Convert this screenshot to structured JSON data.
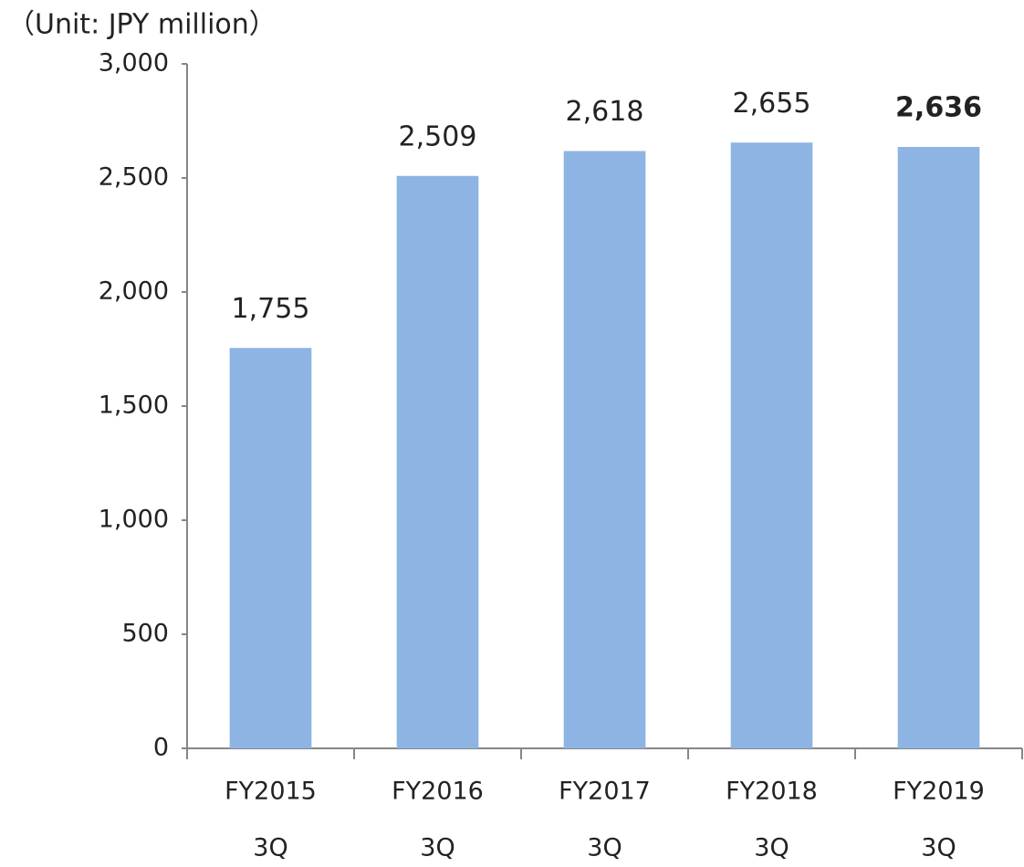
{
  "chart_data": {
    "type": "bar",
    "subtitle": "（Unit: JPY million）",
    "categories": [
      [
        "FY2015",
        "3Q"
      ],
      [
        "FY2016",
        "3Q"
      ],
      [
        "FY2017",
        "3Q"
      ],
      [
        "FY2018",
        "3Q"
      ],
      [
        "FY2019",
        "3Q"
      ]
    ],
    "values": [
      1755,
      2509,
      2618,
      2655,
      2636
    ],
    "value_labels": [
      "1,755",
      "2,509",
      "2,618",
      "2,655",
      "2,636"
    ],
    "value_label_bold": [
      false,
      false,
      false,
      false,
      true
    ],
    "color": "#8eb4e3",
    "ylim": [
      0,
      3000
    ],
    "yticks": [
      0,
      500,
      {
        "value": 1000,
        "label": "1,000"
      },
      {
        "value": 1500,
        "label": "1,500"
      },
      {
        "value": 2000,
        "label": "2,000"
      },
      {
        "value": 2500,
        "label": "2,500"
      },
      {
        "value": 3000,
        "label": "3,000"
      }
    ],
    "grid": false
  }
}
